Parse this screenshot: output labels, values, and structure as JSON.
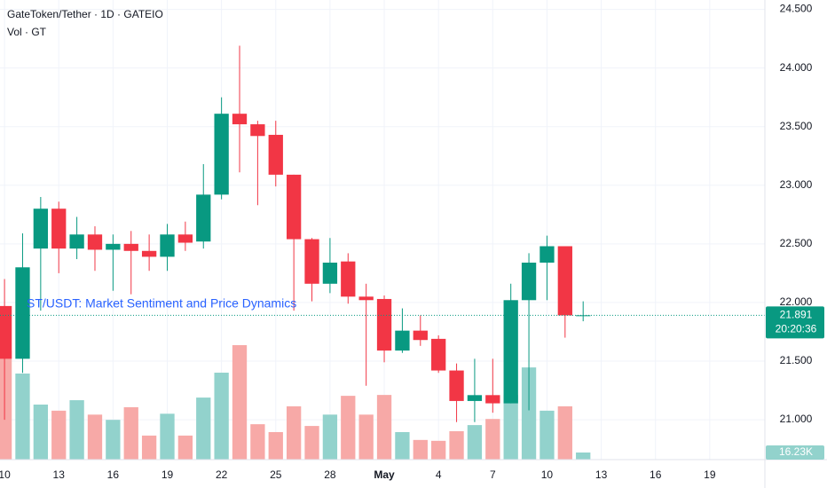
{
  "chart_data": {
    "type": "candlestick",
    "title": "GateToken/Tether · 1D · GATEIO",
    "volume_title": "Vol · GT",
    "annotation": "ST/USDT: Market Sentiment and Price Dynamics",
    "up_color": "#089981",
    "down_color": "#f23645",
    "up_volume_color": "#92d2cc",
    "down_volume_color": "#f7a9a7",
    "grid": true,
    "xlim": [
      -0.25,
      42.05
    ],
    "ylim": [
      20.66,
      24.58
    ],
    "xticks": [
      {
        "value": 0,
        "label": "10"
      },
      {
        "value": 3,
        "label": "13"
      },
      {
        "value": 6,
        "label": "16"
      },
      {
        "value": 9,
        "label": "19"
      },
      {
        "value": 12,
        "label": "22"
      },
      {
        "value": 15,
        "label": "25"
      },
      {
        "value": 18,
        "label": "28"
      },
      {
        "value": 21,
        "label": "May"
      },
      {
        "value": 24,
        "label": "4"
      },
      {
        "value": 27,
        "label": "7"
      },
      {
        "value": 30,
        "label": "10"
      },
      {
        "value": 33,
        "label": "13"
      },
      {
        "value": 36,
        "label": "16"
      },
      {
        "value": 39,
        "label": "19"
      }
    ],
    "yticks": [
      {
        "value": 24.5,
        "label": "24.500"
      },
      {
        "value": 24.0,
        "label": "24.000"
      },
      {
        "value": 23.5,
        "label": "23.500"
      },
      {
        "value": 23.0,
        "label": "23.000"
      },
      {
        "value": 22.5,
        "label": "22.500"
      },
      {
        "value": 22.0,
        "label": "22.000"
      },
      {
        "value": 21.5,
        "label": "21.500"
      },
      {
        "value": 21.0,
        "label": "21.000"
      }
    ],
    "open": [
      21.97,
      21.52,
      22.46,
      22.8,
      22.46,
      22.58,
      22.45,
      22.5,
      22.44,
      22.39,
      22.58,
      22.52,
      22.92,
      23.61,
      23.52,
      23.43,
      23.09,
      22.54,
      22.16,
      22.35,
      22.05,
      22.03,
      21.59,
      21.76,
      21.69,
      21.42,
      21.16,
      21.21,
      21.14,
      22.02,
      22.34,
      22.48,
      21.89
    ],
    "high": [
      22.2,
      22.59,
      22.9,
      22.86,
      22.73,
      22.65,
      22.58,
      22.61,
      22.58,
      22.67,
      22.69,
      23.18,
      23.75,
      24.19,
      23.55,
      23.55,
      23.09,
      22.55,
      22.55,
      22.42,
      22.16,
      22.06,
      21.95,
      21.89,
      21.72,
      21.48,
      21.52,
      21.52,
      22.16,
      22.42,
      22.57,
      22.48,
      22.01
    ],
    "low": [
      21.0,
      21.4,
      21.93,
      22.25,
      22.37,
      22.27,
      22.1,
      22.07,
      22.27,
      22.27,
      22.44,
      22.46,
      22.88,
      23.11,
      22.83,
      22.99,
      21.93,
      22.01,
      22.08,
      21.99,
      21.29,
      21.49,
      21.57,
      21.63,
      21.4,
      20.98,
      20.98,
      21.06,
      21.14,
      21.08,
      22.02,
      21.7,
      21.84
    ],
    "close": [
      21.52,
      22.3,
      22.8,
      22.46,
      22.58,
      22.45,
      22.5,
      22.44,
      22.39,
      22.58,
      22.51,
      22.92,
      23.61,
      23.52,
      23.42,
      23.09,
      22.54,
      22.16,
      22.34,
      22.05,
      22.02,
      21.59,
      21.76,
      21.68,
      21.42,
      21.16,
      21.21,
      21.14,
      22.02,
      22.34,
      22.48,
      21.89,
      21.891
    ],
    "volume": [
      249,
      197,
      126,
      112,
      136,
      103,
      91,
      120,
      55,
      105,
      55,
      142,
      199,
      262,
      81,
      63,
      122,
      77,
      103,
      146,
      103,
      148,
      63,
      45,
      43,
      65,
      79,
      93,
      148,
      211,
      112,
      122,
      16.23
    ],
    "last_volume": {
      "value": 16.23,
      "label": "16.23K"
    },
    "last_price": {
      "value": 21.891,
      "label": "21.891"
    },
    "countdown": "20:20:36"
  }
}
